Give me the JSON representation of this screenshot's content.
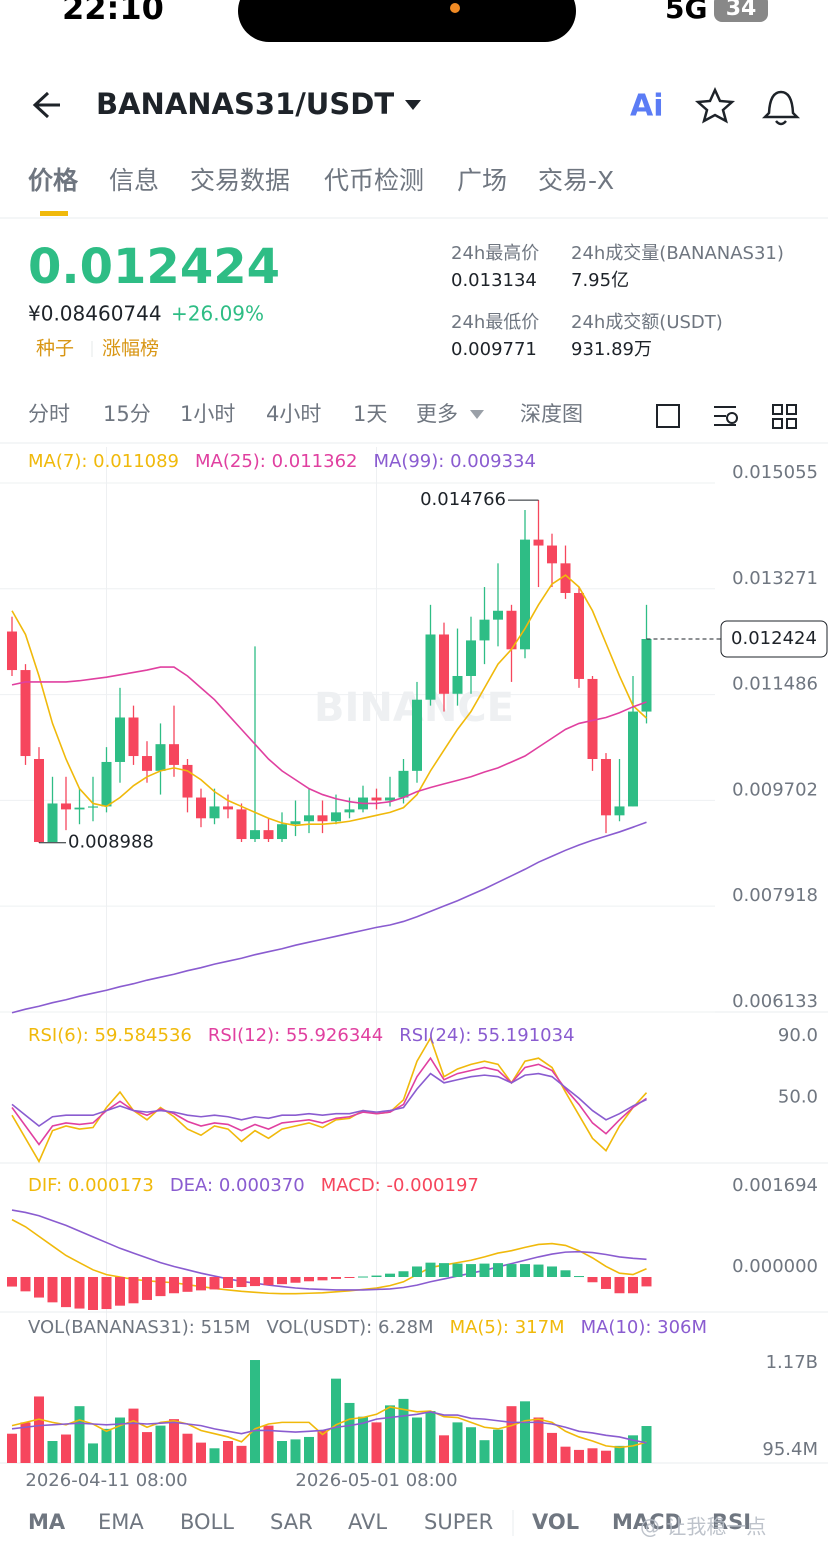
{
  "status": {
    "time": "22:10",
    "network": "5G",
    "battery": "34"
  },
  "header": {
    "title": "BANANAS31/USDT"
  },
  "tabs": [
    "价格",
    "信息",
    "交易数据",
    "代币检测",
    "广场",
    "交易-X"
  ],
  "price": {
    "last": "0.012424",
    "cny": "¥0.08460744",
    "change": "+26.09%",
    "tags": [
      "种子",
      "涨幅榜"
    ]
  },
  "stats": [
    {
      "label": "24h最高价",
      "value": "0.013134"
    },
    {
      "label": "24h成交量(BANANAS31)",
      "value": "7.95亿"
    },
    {
      "label": "24h最低价",
      "value": "0.009771"
    },
    {
      "label": "24h成交额(USDT)",
      "value": "931.89万"
    }
  ],
  "intervals": [
    "分时",
    "15分",
    "1小时",
    "4小时",
    "1天",
    "更多",
    "深度图"
  ],
  "indicator_tabs": [
    "MA",
    "EMA",
    "BOLL",
    "SAR",
    "AVL",
    "SUPER",
    "VOL",
    "MACD",
    "RSI"
  ],
  "watermark": "BINANCE",
  "credit": "@ 让我稳一点",
  "chart_data": [
    {
      "type": "candlestick",
      "categories": [
        null,
        null,
        null,
        null,
        null,
        null,
        null,
        "2026-04-11 08:00",
        null,
        null,
        null,
        null,
        null,
        null,
        null,
        null,
        null,
        null,
        null,
        null,
        null,
        null,
        null,
        null,
        null,
        null,
        null,
        "2026-05-01 08:00",
        null,
        null,
        null,
        null,
        null,
        null,
        null,
        null,
        null,
        null,
        null,
        null,
        null,
        null,
        null,
        null,
        null,
        null,
        null,
        null
      ],
      "open": [
        0.01255,
        0.0119,
        0.0104,
        0.009,
        0.00965,
        0.00955,
        0.00958,
        0.0096,
        0.01035,
        0.0111,
        0.01045,
        0.0102,
        0.01065,
        0.0103,
        0.00975,
        0.0094,
        0.0096,
        0.00955,
        0.00905,
        0.0092,
        0.00905,
        0.0093,
        0.00935,
        0.00945,
        0.00935,
        0.0095,
        0.00955,
        0.00975,
        0.0097,
        0.00975,
        0.0102,
        0.0114,
        0.0125,
        0.0115,
        0.0118,
        0.0124,
        0.01275,
        0.0129,
        0.01225,
        0.0141,
        0.014,
        0.0137,
        0.0132,
        0.01175,
        0.0104,
        0.00945,
        0.0096,
        0.0112
      ],
      "high": [
        0.0128,
        0.012,
        0.0106,
        0.0101,
        0.0101,
        0.0099,
        0.0101,
        0.0106,
        0.0116,
        0.0113,
        0.0107,
        0.011,
        0.0113,
        0.0104,
        0.0099,
        0.0099,
        0.0098,
        0.00965,
        0.0123,
        0.0094,
        0.0095,
        0.0097,
        0.0099,
        0.0097,
        0.0098,
        0.00975,
        0.00995,
        0.0099,
        0.0101,
        0.0104,
        0.0117,
        0.013,
        0.0127,
        0.0126,
        0.0128,
        0.0133,
        0.0137,
        0.013,
        0.0146,
        0.014766,
        0.0142,
        0.014,
        0.0133,
        0.0118,
        0.0105,
        0.0104,
        0.0118,
        0.013
      ],
      "low": [
        0.0118,
        0.0103,
        0.008988,
        0.009,
        0.0092,
        0.0093,
        0.00935,
        0.0095,
        0.01,
        0.0103,
        0.01,
        0.0098,
        0.0101,
        0.0095,
        0.00925,
        0.0093,
        0.0094,
        0.009,
        0.009,
        0.009,
        0.009,
        0.0091,
        0.00915,
        0.00915,
        0.0093,
        0.0094,
        0.0095,
        0.00955,
        0.0096,
        0.00965,
        0.01,
        0.0113,
        0.0112,
        0.0113,
        0.0115,
        0.012,
        0.0123,
        0.0117,
        0.0121,
        0.0133,
        0.0133,
        0.0131,
        0.0116,
        0.0102,
        0.00915,
        0.00935,
        0.0096,
        0.011
      ],
      "close": [
        0.0119,
        0.01045,
        0.009,
        0.00965,
        0.00955,
        0.00958,
        0.0096,
        0.01035,
        0.0111,
        0.01045,
        0.0102,
        0.01065,
        0.0103,
        0.00975,
        0.0094,
        0.0096,
        0.00955,
        0.00905,
        0.0092,
        0.00905,
        0.0093,
        0.00935,
        0.00945,
        0.00935,
        0.0095,
        0.00955,
        0.00975,
        0.0097,
        0.00975,
        0.0102,
        0.0114,
        0.0125,
        0.0115,
        0.0118,
        0.0124,
        0.01275,
        0.0129,
        0.01225,
        0.0141,
        0.014,
        0.0137,
        0.0132,
        0.01175,
        0.0104,
        0.00945,
        0.0096,
        0.0112,
        0.012424
      ],
      "up_color": "#2ebd85",
      "down_color": "#f6465d",
      "high_label": "0.014766",
      "low_label": "0.008988",
      "last_label": "0.012424",
      "ylim": [
        0.006133,
        0.015662
      ],
      "yticks": [
        0.015055,
        0.013271,
        0.011486,
        0.009702,
        0.007918,
        0.006133
      ],
      "series": [
        {
          "name": "MA(7): 0.011089",
          "color": "#f0b90b",
          "values": [
            0.0129,
            0.0125,
            0.0118,
            0.011,
            0.0104,
            0.0099,
            0.00965,
            0.0096,
            0.00975,
            0.00995,
            0.0101,
            0.0102,
            0.01025,
            0.0102,
            0.01005,
            0.00985,
            0.0097,
            0.0096,
            0.0095,
            0.0094,
            0.00932,
            0.00928,
            0.0093,
            0.0093,
            0.00932,
            0.00935,
            0.0094,
            0.00945,
            0.0095,
            0.00958,
            0.0098,
            0.0102,
            0.01055,
            0.0109,
            0.0112,
            0.0116,
            0.012,
            0.01225,
            0.0126,
            0.013,
            0.01335,
            0.0135,
            0.0133,
            0.0129,
            0.01235,
            0.0118,
            0.0113,
            0.011089
          ]
        },
        {
          "name": "MA(25): 0.011362",
          "color": "#e040a0",
          "values": [
            0.01165,
            0.0117,
            0.0117,
            0.0117,
            0.0117,
            0.01172,
            0.01175,
            0.01178,
            0.01182,
            0.01186,
            0.0119,
            0.01195,
            0.01195,
            0.0118,
            0.0116,
            0.0114,
            0.01115,
            0.0109,
            0.01065,
            0.0104,
            0.0102,
            0.01005,
            0.0099,
            0.0098,
            0.00973,
            0.00968,
            0.00965,
            0.00965,
            0.00968,
            0.00975,
            0.00985,
            0.00992,
            0.00998,
            0.01004,
            0.0101,
            0.01018,
            0.01025,
            0.01035,
            0.01045,
            0.0106,
            0.01075,
            0.0109,
            0.011,
            0.01105,
            0.0111,
            0.01118,
            0.01128,
            0.011362
          ]
        },
        {
          "name": "MA(99): 0.009334",
          "color": "#8a5cd0",
          "values": [
            0.00612,
            0.00618,
            0.00623,
            0.00629,
            0.00634,
            0.0064,
            0.00645,
            0.0065,
            0.00656,
            0.00661,
            0.00667,
            0.00672,
            0.00677,
            0.00683,
            0.00688,
            0.00694,
            0.00699,
            0.00704,
            0.0071,
            0.00715,
            0.0072,
            0.00726,
            0.00731,
            0.00736,
            0.00741,
            0.00746,
            0.00751,
            0.00756,
            0.0076,
            0.00766,
            0.00774,
            0.00783,
            0.00792,
            0.00801,
            0.00811,
            0.00821,
            0.00832,
            0.00843,
            0.00854,
            0.00866,
            0.00876,
            0.00886,
            0.00895,
            0.00903,
            0.0091,
            0.00917,
            0.00925,
            0.009334
          ]
        }
      ]
    },
    {
      "type": "line",
      "ylim": [
        14,
        110
      ],
      "yticks": [
        {
          "value": 90,
          "label": "90.0"
        },
        {
          "value": 50,
          "label": "50.0"
        }
      ],
      "series": [
        {
          "name": "RSI(6): 59.584536",
          "color": "#f0b90b",
          "values": [
            45,
            30,
            15,
            35,
            38,
            36,
            37,
            50,
            60,
            48,
            42,
            50,
            44,
            36,
            32,
            38,
            36,
            28,
            35,
            30,
            36,
            38,
            40,
            37,
            42,
            43,
            48,
            46,
            47,
            55,
            80,
            95,
            70,
            75,
            78,
            80,
            78,
            66,
            80,
            82,
            76,
            60,
            45,
            30,
            22,
            38,
            50,
            59.584536
          ]
        },
        {
          "name": "RSI(12): 55.926344",
          "color": "#e040a0",
          "values": [
            50,
            38,
            26,
            38,
            40,
            39,
            40,
            48,
            54,
            48,
            45,
            49,
            46,
            41,
            38,
            40,
            39,
            35,
            39,
            36,
            40,
            41,
            42,
            40,
            43,
            44,
            47,
            46,
            47,
            52,
            70,
            82,
            68,
            72,
            74,
            76,
            74,
            66,
            76,
            78,
            74,
            62,
            52,
            40,
            33,
            42,
            50,
            55.926344
          ]
        },
        {
          "name": "RSI(24): 55.191034",
          "color": "#8a5cd0",
          "values": [
            52,
            45,
            38,
            44,
            45,
            45,
            45,
            48,
            51,
            48,
            47,
            48,
            47,
            45,
            44,
            45,
            44,
            42,
            44,
            43,
            45,
            45,
            46,
            45,
            46,
            46,
            48,
            47,
            48,
            50,
            62,
            72,
            66,
            68,
            70,
            71,
            70,
            66,
            71,
            72,
            70,
            63,
            56,
            48,
            42,
            46,
            51,
            55.191034
          ]
        }
      ]
    },
    {
      "type": "macd",
      "ylim": [
        -0.000732,
        0.002342
      ],
      "yticks": [
        0.001694,
        {
          "value": 0,
          "label": "0.000000"
        }
      ],
      "series": [
        {
          "name": "DIF: 0.000173",
          "color": "#f0b90b",
          "values": [
            0.0012,
            0.00105,
            0.00085,
            0.00065,
            0.00045,
            0.0003,
            0.00015,
            5e-05,
            0,
            -5e-05,
            -8e-05,
            -0.0001,
            -0.00012,
            -0.00016,
            -0.0002,
            -0.00024,
            -0.00027,
            -0.0003,
            -0.00032,
            -0.00034,
            -0.00035,
            -0.00035,
            -0.00034,
            -0.00033,
            -0.00031,
            -0.00029,
            -0.00026,
            -0.00023,
            -0.00018,
            -0.0001,
            5e-05,
            0.0002,
            0.00025,
            0.0003,
            0.00035,
            0.00042,
            0.0005,
            0.00055,
            0.00062,
            0.00068,
            0.0007,
            0.00066,
            0.00055,
            0.0004,
            0.00022,
            8e-05,
            5e-05,
            0.000173
          ]
        },
        {
          "name": "DEA: 0.000370",
          "color": "#8a5cd0",
          "values": [
            0.0014,
            0.00135,
            0.00128,
            0.00118,
            0.00108,
            0.00096,
            0.00084,
            0.00072,
            0.0006,
            0.0005,
            0.0004,
            0.0003,
            0.00022,
            0.00015,
            8e-05,
            2e-05,
            -4e-05,
            -9e-05,
            -0.00013,
            -0.00017,
            -0.0002,
            -0.00023,
            -0.00025,
            -0.00026,
            -0.00027,
            -0.00027,
            -0.00027,
            -0.00026,
            -0.00025,
            -0.00022,
            -0.00017,
            -0.0001,
            -4e-05,
            2e-05,
            8e-05,
            0.00014,
            0.00021,
            0.00028,
            0.00035,
            0.00042,
            0.00048,
            0.00052,
            0.00053,
            0.00051,
            0.00047,
            0.00042,
            0.00039,
            0.00037
          ]
        },
        {
          "name": "MACD: -0.000197",
          "type": "bar",
          "values": [
            -0.0002,
            -0.0003,
            -0.00043,
            -0.00053,
            -0.00063,
            -0.00066,
            -0.00069,
            -0.00067,
            -0.0006,
            -0.00055,
            -0.00048,
            -0.0004,
            -0.00034,
            -0.00031,
            -0.00028,
            -0.00026,
            -0.00023,
            -0.00021,
            -0.00019,
            -0.00017,
            -0.00015,
            -0.00012,
            -9e-05,
            -7e-05,
            -4e-05,
            -2e-05,
            1e-05,
            3e-05,
            7e-05,
            0.00012,
            0.00022,
            0.0003,
            0.00029,
            0.00028,
            0.00027,
            0.00028,
            0.00029,
            0.00027,
            0.00027,
            0.00026,
            0.00022,
            0.00014,
            2e-05,
            -0.00011,
            -0.00025,
            -0.00034,
            -0.00034,
            -0.000197
          ]
        }
      ]
    },
    {
      "type": "volume",
      "unit_note": null,
      "ylim": [
        58.3,
        1849
      ],
      "yticks": [
        {
          "value": 1170,
          "label": "1.17B"
        },
        {
          "value": 95.4,
          "label": "95.4M"
        }
      ],
      "legend": [
        "VOL(BANANAS31): 515M",
        "VOL(USDT): 6.28M"
      ],
      "values": [
        420,
        560,
        880,
        330,
        410,
        760,
        300,
        480,
        620,
        730,
        440,
        520,
        600,
        420,
        310,
        240,
        330,
        270,
        1330,
        520,
        330,
        350,
        380,
        460,
        1100,
        800,
        630,
        560,
        770,
        850,
        620,
        700,
        400,
        560,
        500,
        340,
        470,
        760,
        820,
        620,
        430,
        260,
        220,
        240,
        210,
        270,
        400,
        515
      ],
      "series": [
        {
          "name": "MA(5): 317M",
          "color": "#f0b90b",
          "values": [
            520,
            560,
            600,
            560,
            530,
            590,
            540,
            450,
            520,
            580,
            500,
            560,
            580,
            540,
            460,
            420,
            380,
            320,
            480,
            540,
            560,
            560,
            560,
            410,
            530,
            600,
            620,
            660,
            750,
            720,
            690,
            700,
            630,
            620,
            560,
            500,
            480,
            520,
            580,
            600,
            560,
            450,
            380,
            330,
            270,
            250,
            270,
            317
          ]
        },
        {
          "name": "MA(10): 306M",
          "color": "#8a5cd0",
          "values": [
            480,
            500,
            520,
            530,
            540,
            550,
            540,
            530,
            540,
            550,
            540,
            550,
            560,
            540,
            520,
            480,
            450,
            420,
            460,
            460,
            450,
            440,
            450,
            460,
            500,
            520,
            550,
            600,
            620,
            640,
            660,
            690,
            650,
            650,
            610,
            600,
            580,
            560,
            560,
            560,
            540,
            500,
            450,
            430,
            400,
            380,
            340,
            306
          ]
        }
      ]
    }
  ]
}
